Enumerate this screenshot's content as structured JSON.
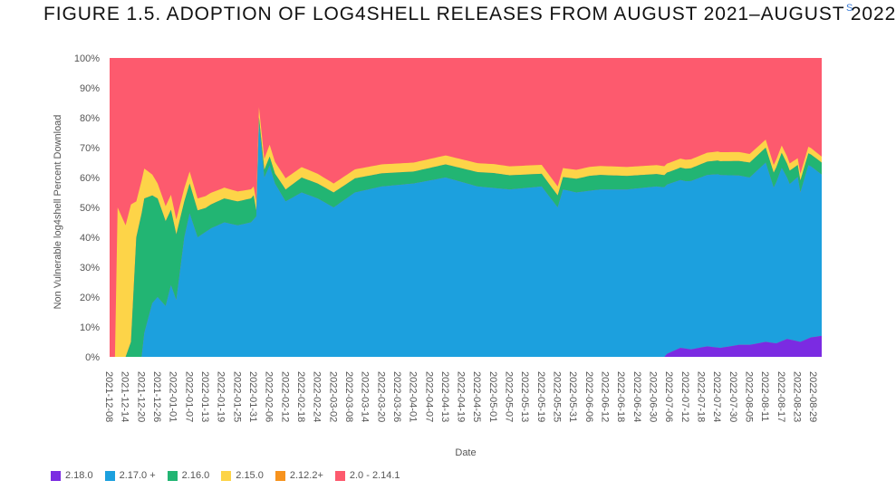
{
  "figure": {
    "title": "FIGURE 1.5. ADOPTION OF LOG4SHELL RELEASES FROM AUGUST 2021–AUGUST 2022",
    "side_mark": "S"
  },
  "chart_data": {
    "type": "area",
    "stacked": true,
    "xlabel": "Date",
    "ylabel": "Non Vulnerable log4shell Percent Download",
    "ylim": [
      0,
      100
    ],
    "y_ticks": [
      "0%",
      "10%",
      "20%",
      "30%",
      "40%",
      "50%",
      "60%",
      "70%",
      "80%",
      "90%",
      "100%"
    ],
    "x_tick_labels": [
      "2021-12-08",
      "2021-12-14",
      "2021-12-20",
      "2021-12-26",
      "2022-01-01",
      "2022-01-07",
      "2022-01-13",
      "2022-01-19",
      "2022-01-25",
      "2022-01-31",
      "2022-02-06",
      "2022-02-12",
      "2022-02-18",
      "2022-02-24",
      "2022-03-02",
      "2022-03-08",
      "2022-03-14",
      "2022-03-20",
      "2022-03-26",
      "2022-04-01",
      "2022-04-07",
      "2022-04-13",
      "2022-04-19",
      "2022-04-25",
      "2022-05-01",
      "2022-05-07",
      "2022-05-13",
      "2022-05-19",
      "2022-05-25",
      "2022-05-31",
      "2022-06-06",
      "2022-06-12",
      "2022-06-18",
      "2022-06-24",
      "2022-06-30",
      "2022-07-06",
      "2022-07-12",
      "2022-07-18",
      "2022-07-24",
      "2022-07-30",
      "2022-08-05",
      "2022-08-11",
      "2022-08-17",
      "2022-08-23",
      "2022-08-29"
    ],
    "x_range": [
      "2021-12-08",
      "2022-09-01"
    ],
    "grid": false,
    "legend_position": "bottom-left",
    "legend": [
      {
        "name": "2.18.0",
        "color": "#7b2be2"
      },
      {
        "name": "2.17.0 +",
        "color": "#1ca0de"
      },
      {
        "name": "2.16.0",
        "color": "#22b573"
      },
      {
        "name": "2.15.0",
        "color": "#fdd448"
      },
      {
        "name": "2.12.2+",
        "color": "#f7931e"
      },
      {
        "name": "2.0 - 2.14.1",
        "color": "#fd5a6e"
      }
    ],
    "series": [
      {
        "name": "2.18.0",
        "color": "#7b2be2",
        "x": [
          "2021-12-08",
          "2022-07-04",
          "2022-07-05",
          "2022-07-10",
          "2022-07-14",
          "2022-07-20",
          "2022-07-25",
          "2022-08-01",
          "2022-08-05",
          "2022-08-11",
          "2022-08-15",
          "2022-08-19",
          "2022-08-24",
          "2022-08-28",
          "2022-09-01"
        ],
        "values": [
          0,
          0,
          1,
          3,
          2.5,
          3.5,
          3,
          4,
          4,
          5,
          4.5,
          6,
          5,
          6.5,
          7
        ]
      },
      {
        "name": "2.17.0 +",
        "color": "#1ca0de",
        "x": [
          "2021-12-08",
          "2021-12-20",
          "2021-12-21",
          "2021-12-24",
          "2021-12-26",
          "2021-12-29",
          "2021-12-31",
          "2022-01-02",
          "2022-01-05",
          "2022-01-07",
          "2022-01-10",
          "2022-01-15",
          "2022-01-20",
          "2022-01-25",
          "2022-01-30",
          "2022-02-01",
          "2022-02-02",
          "2022-02-04",
          "2022-02-06",
          "2022-02-08",
          "2022-02-12",
          "2022-02-18",
          "2022-02-24",
          "2022-03-02",
          "2022-03-10",
          "2022-03-20",
          "2022-04-01",
          "2022-04-13",
          "2022-04-25",
          "2022-05-07",
          "2022-05-19",
          "2022-05-25",
          "2022-05-27",
          "2022-06-01",
          "2022-06-10",
          "2022-06-20",
          "2022-07-01",
          "2022-07-12",
          "2022-07-24",
          "2022-08-05",
          "2022-08-11",
          "2022-08-14",
          "2022-08-17",
          "2022-08-20",
          "2022-08-23",
          "2022-08-24",
          "2022-08-27",
          "2022-09-01"
        ],
        "values": [
          0,
          0,
          8,
          18,
          20,
          17,
          24,
          19,
          40,
          48,
          40,
          43,
          45,
          44,
          45,
          47,
          78,
          60,
          64,
          58,
          52,
          55,
          53,
          50,
          55,
          57,
          58,
          60,
          57,
          56,
          57,
          50,
          56,
          55,
          56,
          56,
          57,
          56,
          58,
          56,
          60,
          52,
          58,
          52,
          55,
          50,
          58,
          54
        ]
      },
      {
        "name": "2.16.0",
        "color": "#22b573",
        "x": [
          "2021-12-08",
          "2021-12-14",
          "2021-12-16",
          "2021-12-18",
          "2021-12-20",
          "2021-12-24",
          "2021-12-28",
          "2022-01-02",
          "2022-01-05",
          "2022-01-07",
          "2022-01-13",
          "2022-01-20",
          "2022-01-31",
          "2022-02-01",
          "2022-02-06",
          "2022-02-18",
          "2022-03-02",
          "2022-04-01",
          "2022-05-01",
          "2022-05-25",
          "2022-06-06",
          "2022-07-06",
          "2022-08-05",
          "2022-08-11",
          "2022-08-17",
          "2022-08-23",
          "2022-09-01"
        ],
        "values": [
          0,
          0,
          5,
          40,
          48,
          36,
          30,
          22,
          12,
          10,
          8,
          8,
          8,
          2,
          3,
          5,
          5,
          4,
          5,
          4,
          5,
          4,
          5,
          5,
          5,
          4,
          4
        ]
      },
      {
        "name": "2.15.0",
        "color": "#fdd448",
        "x": [
          "2021-12-08",
          "2021-12-10",
          "2021-12-11",
          "2021-12-14",
          "2021-12-16",
          "2021-12-18",
          "2021-12-20",
          "2021-12-26",
          "2022-01-02",
          "2022-01-07",
          "2022-01-13",
          "2022-01-31",
          "2022-02-06",
          "2022-03-02",
          "2022-04-01",
          "2022-05-01",
          "2022-06-01",
          "2022-07-01",
          "2022-08-01",
          "2022-09-01"
        ],
        "values": [
          0,
          0,
          50,
          44,
          46,
          12,
          11,
          5,
          5,
          4,
          4,
          3,
          4,
          3,
          3,
          3,
          3,
          3,
          3,
          2
        ]
      },
      {
        "name": "2.12.2+",
        "color": "#f7931e",
        "x": [
          "2021-12-08",
          "2022-09-01"
        ],
        "values": [
          0,
          0
        ]
      }
    ],
    "remainder_series": {
      "name": "2.0 - 2.14.1",
      "color": "#fd5a6e",
      "note": "fills to 100%"
    }
  }
}
